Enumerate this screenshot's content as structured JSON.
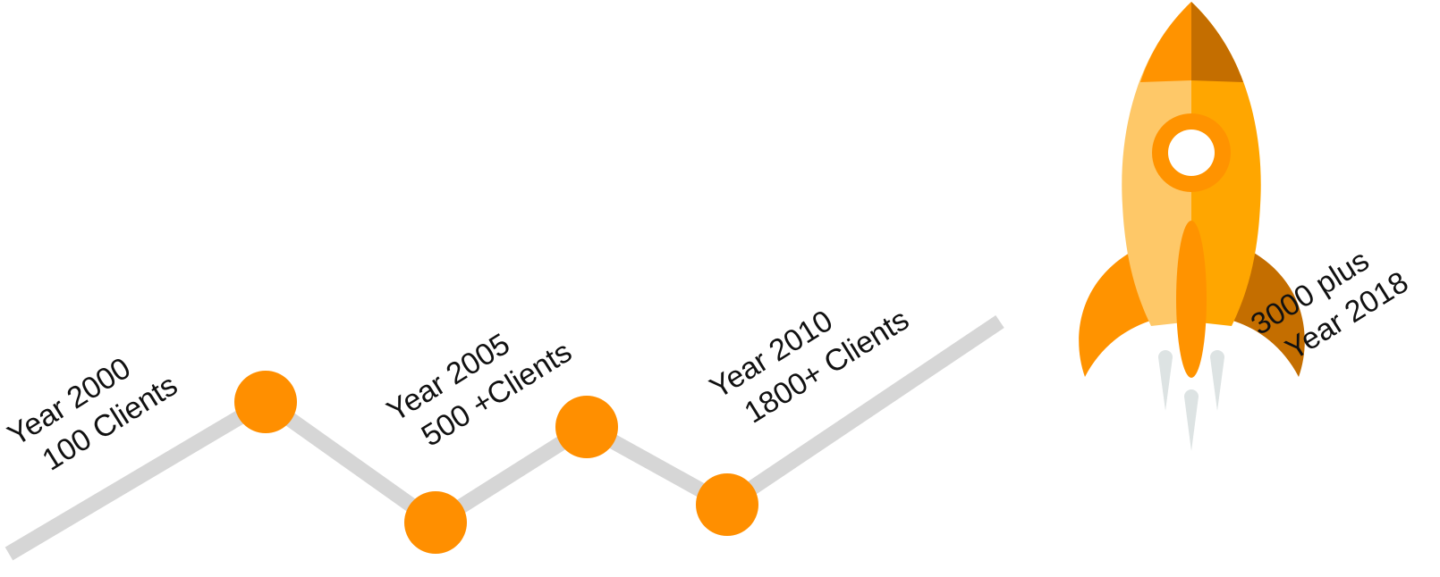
{
  "milestones": [
    {
      "year": "Year 2000",
      "clients": "100 Clients"
    },
    {
      "year": "Year 2005",
      "clients": "500 +Clients"
    },
    {
      "year": "Year 2010",
      "clients": "1800+ Clients"
    },
    {
      "clients": "3000 plus",
      "year": "Year 2018"
    }
  ]
}
